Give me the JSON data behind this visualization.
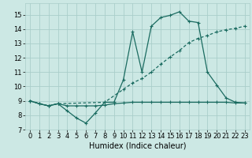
{
  "xlabel": "Humidex (Indice chaleur)",
  "xlim": [
    -0.5,
    23.5
  ],
  "ylim": [
    7,
    15.8
  ],
  "yticks": [
    7,
    8,
    9,
    10,
    11,
    12,
    13,
    14,
    15
  ],
  "xticks": [
    0,
    1,
    2,
    3,
    4,
    5,
    6,
    7,
    8,
    9,
    10,
    11,
    12,
    13,
    14,
    15,
    16,
    17,
    18,
    19,
    20,
    21,
    22,
    23
  ],
  "bg_color": "#cce8e4",
  "grid_color": "#aaceca",
  "line_color": "#1a6b60",
  "line1_x": [
    0,
    1,
    2,
    3,
    4,
    5,
    6,
    7,
    8,
    9,
    10,
    11,
    12,
    13,
    14,
    15,
    16,
    17,
    18,
    19,
    20,
    21,
    22,
    23
  ],
  "line1_y": [
    9.0,
    8.8,
    8.65,
    8.8,
    8.3,
    7.8,
    7.45,
    8.15,
    8.9,
    8.9,
    10.45,
    13.8,
    11.0,
    14.2,
    14.8,
    14.95,
    15.2,
    14.55,
    14.45,
    11.0,
    10.1,
    9.2,
    8.9,
    8.85
  ],
  "line2_x": [
    0,
    2,
    3,
    8,
    10,
    11,
    12,
    13,
    14,
    15,
    16,
    17,
    18,
    19,
    20,
    21,
    22,
    23
  ],
  "line2_y": [
    9.0,
    8.65,
    8.8,
    8.9,
    9.8,
    10.25,
    10.55,
    11.0,
    11.55,
    12.05,
    12.5,
    13.05,
    13.35,
    13.55,
    13.8,
    13.95,
    14.05,
    14.2
  ],
  "line3_x": [
    0,
    1,
    2,
    3,
    4,
    5,
    6,
    7,
    8,
    9,
    10,
    11,
    12,
    13,
    14,
    15,
    16,
    17,
    18,
    19,
    20,
    21,
    22,
    23
  ],
  "line3_y": [
    9.0,
    8.8,
    8.65,
    8.8,
    8.65,
    8.65,
    8.65,
    8.65,
    8.7,
    8.8,
    8.85,
    8.9,
    8.9,
    8.9,
    8.9,
    8.9,
    8.9,
    8.9,
    8.9,
    8.9,
    8.9,
    8.9,
    8.85,
    8.85
  ],
  "fontsize_label": 7,
  "fontsize_tick": 6
}
